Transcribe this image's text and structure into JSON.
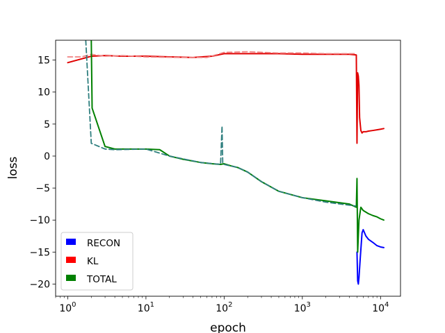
{
  "chart_data": {
    "type": "line",
    "title": "",
    "xlabel": "epoch",
    "ylabel": "loss",
    "xscale": "log",
    "xlim": [
      0.7,
      18000
    ],
    "ylim": [
      -21.9,
      18.1
    ],
    "x_ticks": [
      {
        "value": 1,
        "base": "10",
        "exp": "0"
      },
      {
        "value": 10,
        "base": "10",
        "exp": "1"
      },
      {
        "value": 100,
        "base": "10",
        "exp": "2"
      },
      {
        "value": 1000,
        "base": "10",
        "exp": "3"
      },
      {
        "value": 10000,
        "base": "10",
        "exp": "4"
      }
    ],
    "y_ticks": [
      {
        "value": 15,
        "label": "15"
      },
      {
        "value": 10,
        "label": "10"
      },
      {
        "value": 5,
        "label": "5"
      },
      {
        "value": 0,
        "label": "0"
      },
      {
        "value": -5,
        "label": "−5"
      },
      {
        "value": -10,
        "label": "−10"
      },
      {
        "value": -15,
        "label": "−15"
      },
      {
        "value": -20,
        "label": "−20"
      }
    ],
    "grid": false,
    "legend": {
      "placement": "lower-left",
      "entries": [
        {
          "label": "RECON",
          "color": "#0000ff"
        },
        {
          "label": "KL",
          "color": "#ff0000"
        },
        {
          "label": "TOTAL",
          "color": "#008000"
        }
      ]
    },
    "series": [
      {
        "name": "KL",
        "color": "#e00000",
        "style": "solid",
        "x": [
          1,
          2,
          3,
          5,
          10,
          20,
          40,
          70,
          100,
          200,
          500,
          1000,
          2000,
          4000,
          4900,
          5000,
          5100,
          5200,
          5300,
          5400,
          5600,
          5800,
          6000,
          6500,
          7000,
          8000,
          9000,
          10000,
          11000
        ],
        "y": [
          14.6,
          15.6,
          15.7,
          15.6,
          15.6,
          15.5,
          15.4,
          15.6,
          16.0,
          16.0,
          16.0,
          15.9,
          15.9,
          15.9,
          15.8,
          2.0,
          13.0,
          12.5,
          11.0,
          6.0,
          4.0,
          3.6,
          3.8,
          3.8,
          3.9,
          4.0,
          4.1,
          4.2,
          4.3
        ]
      },
      {
        "name": "KL (dashed)",
        "color": "#f08080",
        "style": "dashed",
        "x": [
          1,
          1.5,
          2,
          3,
          5,
          10,
          30,
          60,
          100,
          200,
          500,
          1000,
          2000,
          4800
        ],
        "y": [
          15.5,
          15.5,
          15.9,
          15.6,
          15.7,
          15.5,
          15.4,
          15.4,
          16.2,
          16.3,
          16.1,
          16.1,
          16.0,
          16.0
        ]
      },
      {
        "name": "RECON",
        "color": "#0000ff",
        "style": "solid",
        "x": [
          5000,
          5100,
          5200,
          5300,
          5500,
          5800,
          6000,
          6500,
          7000,
          8000,
          9000,
          10000,
          11000
        ],
        "y": [
          -15.0,
          -19.5,
          -20.0,
          -19.0,
          -16.0,
          -12.0,
          -11.5,
          -12.5,
          -13.0,
          -13.5,
          -14.0,
          -14.2,
          -14.3
        ]
      },
      {
        "name": "TOTAL",
        "color": "#008000",
        "style": "solid",
        "x": [
          2,
          2.05,
          3,
          4,
          6,
          10,
          15,
          20,
          30,
          50,
          70,
          90,
          100,
          120,
          150,
          200,
          300,
          500,
          1000,
          2000,
          4000,
          4900,
          5000,
          5100,
          5300,
          5600,
          6000,
          7000,
          8000,
          9000,
          10000,
          11000
        ],
        "y": [
          18.1,
          7.5,
          1.5,
          1.1,
          1.1,
          1.1,
          1.0,
          0.0,
          -0.5,
          -1.0,
          -1.2,
          -1.3,
          -1.2,
          -1.5,
          -1.8,
          -2.5,
          -4.0,
          -5.5,
          -6.5,
          -7.0,
          -7.5,
          -8.0,
          -3.5,
          -15.0,
          -10.0,
          -8.0,
          -8.5,
          -9.0,
          -9.3,
          -9.5,
          -9.8,
          -10.0
        ]
      },
      {
        "name": "TOTAL (dashed)",
        "color": "#2f7f7f",
        "style": "dashed",
        "x": [
          1.7,
          2,
          3,
          4,
          10,
          20,
          50,
          90,
          94,
          96,
          100,
          150,
          200,
          300,
          500,
          1000,
          2000,
          4800
        ],
        "y": [
          18.1,
          2.0,
          1.1,
          1.0,
          1.1,
          0.0,
          -1.0,
          -1.3,
          4.7,
          -1.2,
          -1.3,
          -1.8,
          -2.5,
          -4.0,
          -5.5,
          -6.5,
          -7.2,
          -7.8
        ]
      }
    ]
  }
}
